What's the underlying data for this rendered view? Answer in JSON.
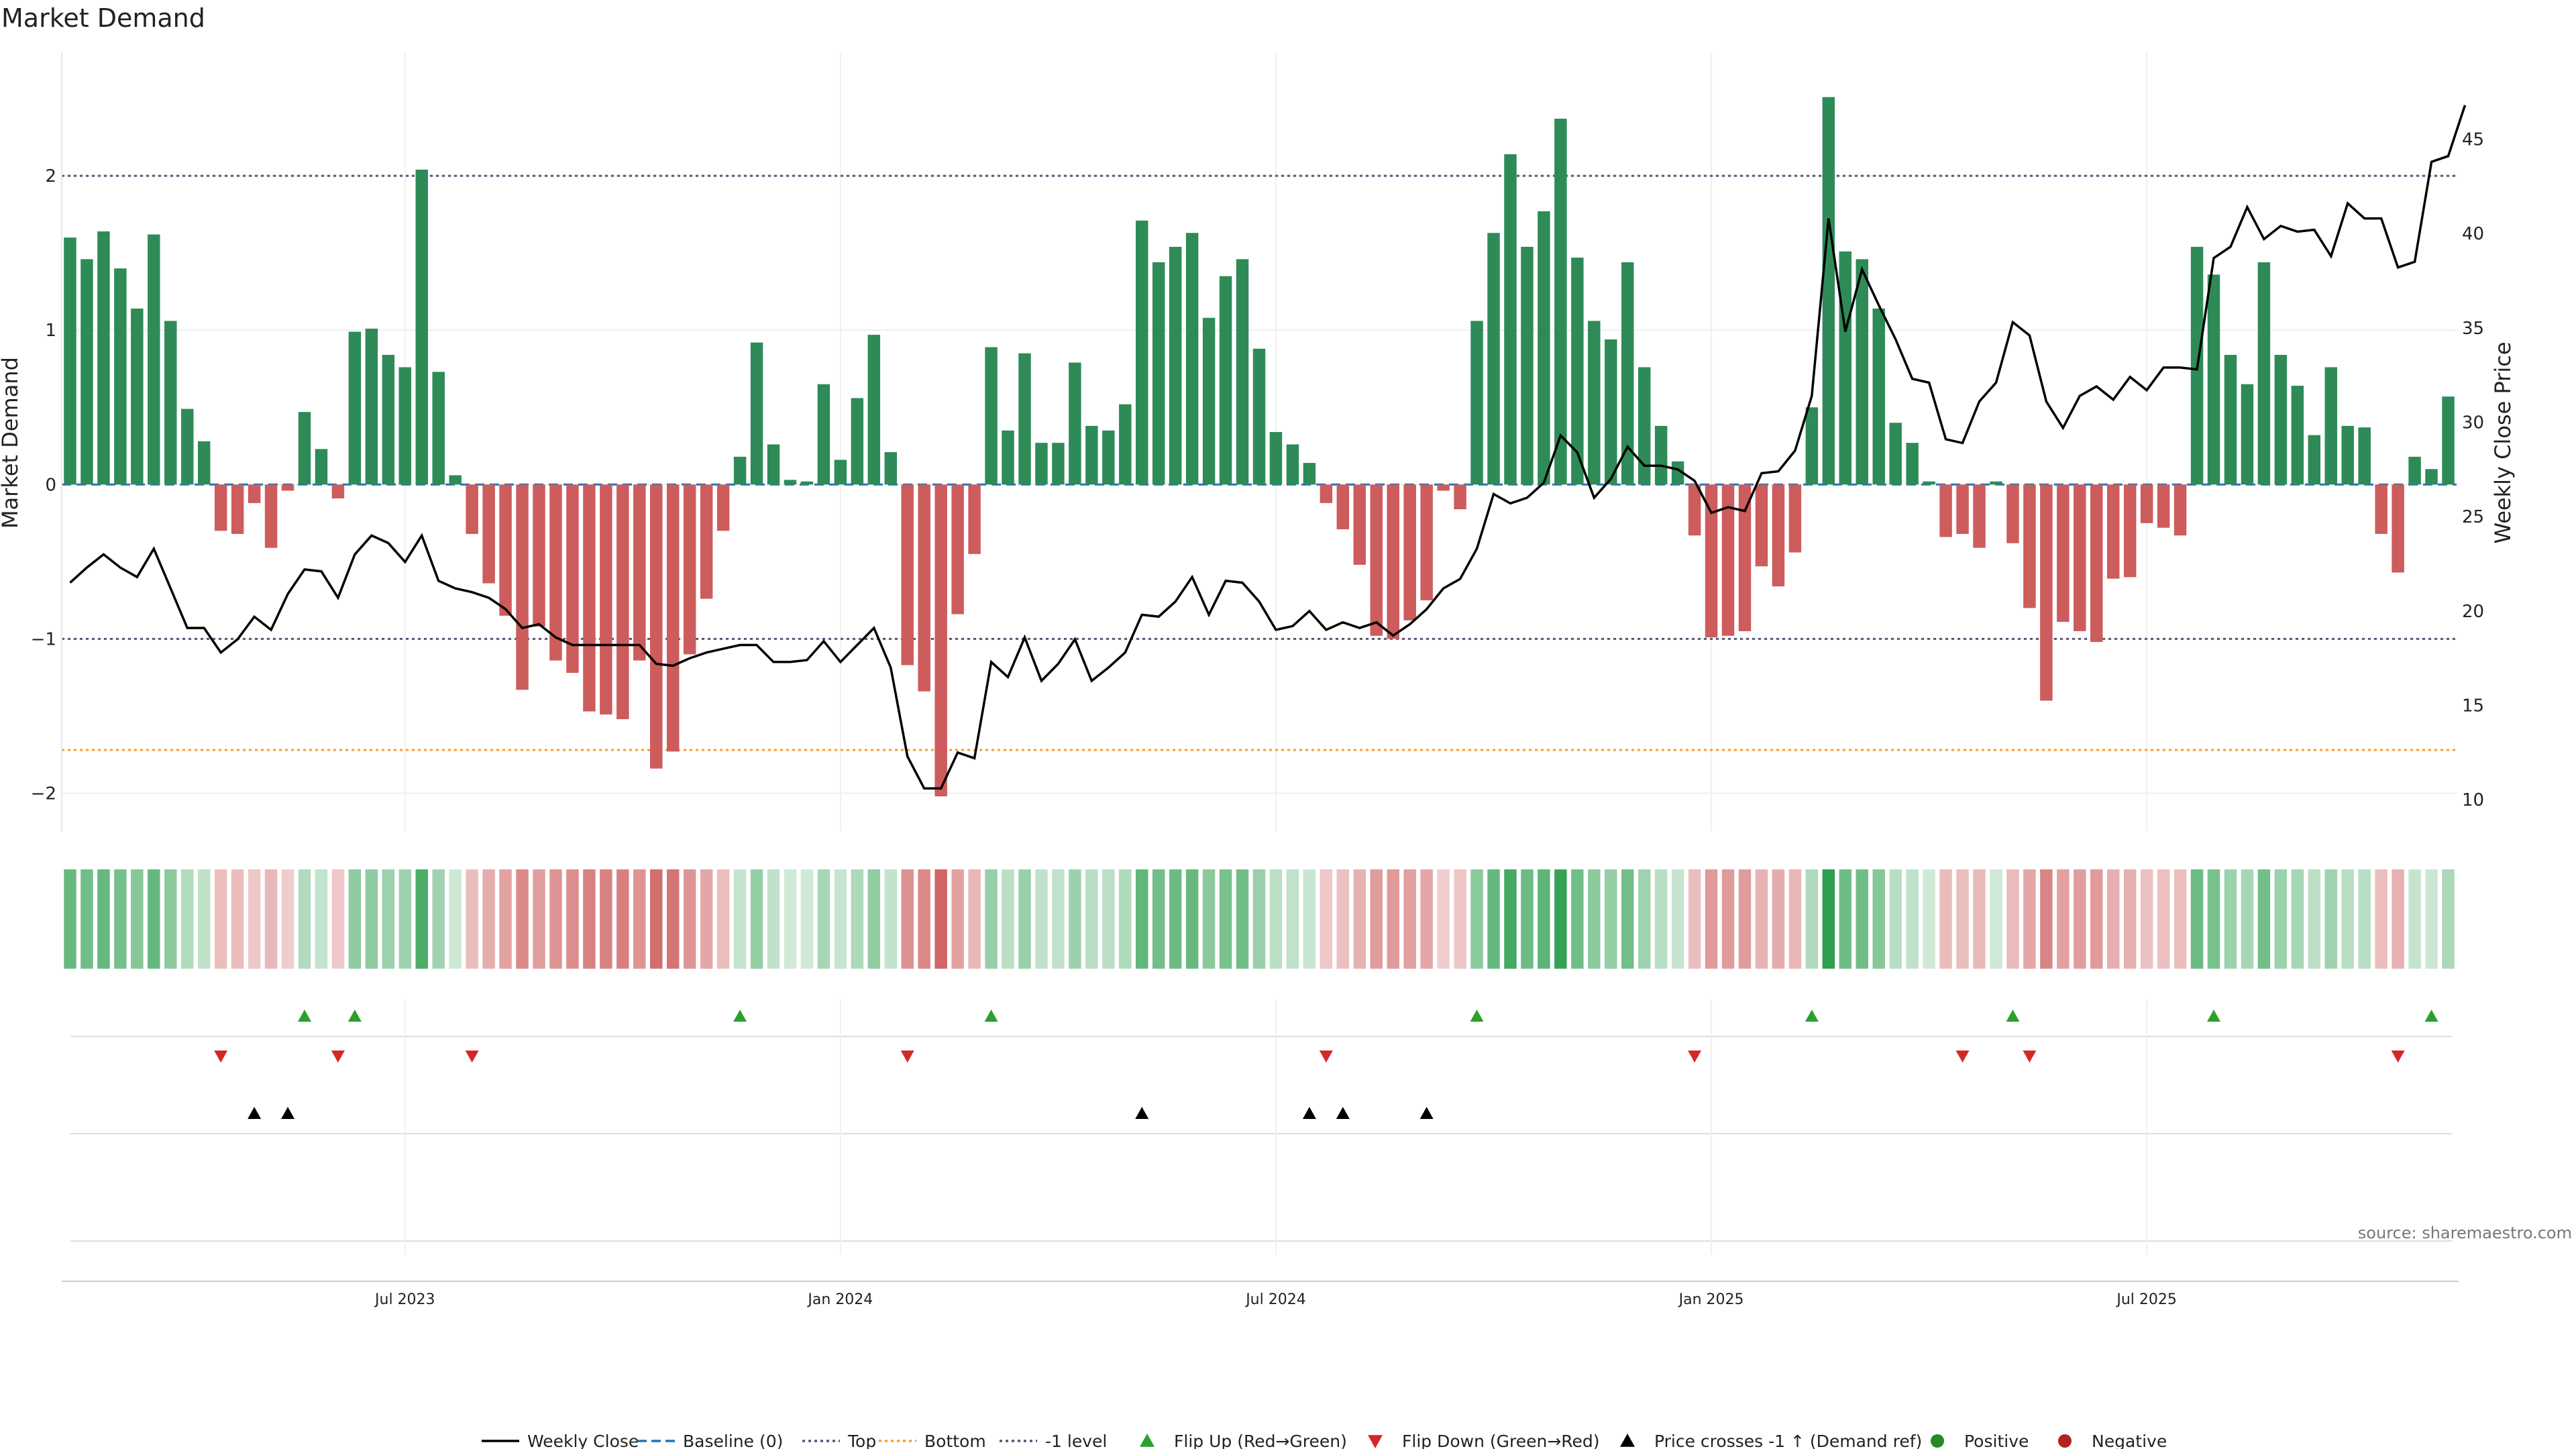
{
  "chart_data": {
    "type": "bar",
    "title": "Market Demand",
    "ylabel": "Market Demand",
    "y2label": "Weekly Close Price",
    "ylim": [
      -2.25,
      2.8
    ],
    "y2lim": [
      8.3,
      49.6
    ],
    "yticks": [
      -2,
      -1,
      0,
      1,
      2
    ],
    "yticklabels": [
      "−2",
      "−1",
      "0",
      "1",
      "2"
    ],
    "y2ticks": [
      10,
      15,
      20,
      25,
      30,
      35,
      40,
      45
    ],
    "y2ticklabels": [
      "10",
      "15",
      "20",
      "25",
      "30",
      "35",
      "40",
      "45"
    ],
    "reference_lines": {
      "top": 2.0,
      "bottom": -1.72,
      "minus_one": -1.0,
      "baseline": 0
    },
    "xticks": [
      {
        "index": 20,
        "label": "Jul 2023"
      },
      {
        "index": 46,
        "label": "Jan 2024"
      },
      {
        "index": 72,
        "label": "Jul 2024"
      },
      {
        "index": 98,
        "label": "Jan 2025"
      },
      {
        "index": 124,
        "label": "Jul 2025"
      }
    ],
    "series": [
      {
        "name": "Market Demand",
        "values": [
          1.6,
          1.46,
          1.64,
          1.4,
          1.14,
          1.62,
          1.06,
          0.49,
          0.28,
          -0.3,
          -0.32,
          -0.12,
          -0.41,
          -0.04,
          0.47,
          0.23,
          -0.09,
          0.99,
          1.01,
          0.84,
          0.76,
          2.04,
          0.73,
          0.06,
          -0.32,
          -0.64,
          -0.85,
          -1.33,
          -0.92,
          -1.14,
          -1.22,
          -1.47,
          -1.49,
          -1.52,
          -1.14,
          -1.84,
          -1.73,
          -1.1,
          -0.74,
          -0.3,
          0.18,
          0.92,
          0.26,
          0.03,
          0.02,
          0.65,
          0.16,
          0.56,
          0.97,
          0.21,
          -1.17,
          -1.34,
          -2.02,
          -0.84,
          -0.45,
          0.89,
          0.35,
          0.85,
          0.27,
          0.27,
          0.79,
          0.38,
          0.35,
          0.52,
          1.71,
          1.44,
          1.54,
          1.63,
          1.08,
          1.35,
          1.46,
          0.88,
          0.34,
          0.26,
          0.14,
          -0.12,
          -0.29,
          -0.52,
          -0.98,
          -1.0,
          -0.88,
          -0.75,
          -0.04,
          -0.16,
          1.06,
          1.63,
          2.14,
          1.54,
          1.77,
          2.37,
          1.47,
          1.06,
          0.94,
          1.44,
          0.76,
          0.38,
          0.15,
          -0.33,
          -0.99,
          -0.98,
          -0.95,
          -0.53,
          -0.66,
          -0.44,
          0.5,
          2.51,
          1.51,
          1.46,
          1.14,
          0.4,
          0.27,
          0.02,
          -0.34,
          -0.32,
          -0.41,
          0.02,
          -0.38,
          -0.8,
          -1.4,
          -0.89,
          -0.95,
          -1.02,
          -0.61,
          -0.6,
          -0.25,
          -0.28,
          -0.33,
          1.54,
          1.36,
          0.84,
          0.65,
          1.44,
          0.84,
          0.64,
          0.32,
          0.76,
          0.38,
          0.37,
          -0.32,
          -0.57,
          0.18,
          0.1,
          0.57
        ]
      },
      {
        "name": "Weekly Close",
        "values": [
          21.5,
          22.3,
          23.0,
          22.3,
          21.8,
          23.3,
          21.2,
          19.1,
          19.1,
          17.8,
          18.5,
          19.7,
          19.0,
          20.9,
          22.2,
          22.1,
          20.7,
          23.0,
          24.0,
          23.6,
          22.6,
          24.0,
          21.6,
          21.2,
          21.0,
          20.7,
          20.1,
          19.1,
          19.3,
          18.6,
          18.2,
          18.2,
          18.2,
          18.2,
          18.2,
          17.2,
          17.1,
          17.5,
          17.8,
          18.0,
          18.2,
          18.2,
          17.3,
          17.3,
          17.4,
          18.4,
          17.3,
          18.2,
          19.1,
          17.0,
          12.3,
          10.6,
          10.6,
          12.5,
          12.2,
          17.3,
          16.5,
          18.6,
          16.3,
          17.2,
          18.5,
          16.3,
          17.0,
          17.8,
          19.8,
          19.7,
          20.5,
          21.8,
          19.8,
          21.6,
          21.5,
          20.5,
          19.0,
          19.2,
          20.0,
          19.0,
          19.4,
          19.1,
          19.4,
          18.7,
          19.3,
          20.1,
          21.2,
          21.7,
          23.3,
          26.2,
          25.7,
          26.0,
          26.8,
          29.3,
          28.4,
          26.0,
          27.0,
          28.7,
          27.7,
          27.7,
          27.5,
          26.9,
          25.2,
          25.5,
          25.3,
          27.3,
          27.4,
          28.5,
          31.4,
          40.8,
          34.8,
          38.1,
          36.2,
          34.4,
          32.3,
          32.1,
          29.1,
          28.9,
          31.1,
          32.1,
          35.3,
          34.6,
          31.1,
          29.7,
          31.4,
          31.9,
          31.2,
          32.4,
          31.7,
          32.9,
          32.9,
          32.8,
          38.7,
          39.3,
          41.4,
          39.7,
          40.4,
          40.1,
          40.2,
          38.8,
          41.6,
          40.8,
          40.8,
          38.2,
          38.5,
          43.8,
          44.1,
          46.8
        ]
      }
    ],
    "signal_rows": {
      "flip_up": [
        14,
        17,
        40,
        55,
        84,
        104,
        116,
        128,
        141
      ],
      "flip_down": [
        9,
        16,
        24,
        50,
        75,
        97,
        113,
        117,
        139
      ],
      "price_crosses_minus_one_up": [
        11,
        13,
        64,
        74,
        76,
        81
      ]
    },
    "legend": [
      {
        "label": "Weekly Close",
        "kind": "line",
        "color": "#000000"
      },
      {
        "label": "Baseline (0)",
        "kind": "dashed",
        "color": "#1f77b4"
      },
      {
        "label": "Top",
        "kind": "dotted",
        "color": "#555577"
      },
      {
        "label": "Bottom",
        "kind": "dotted",
        "color": "#ff9922"
      },
      {
        "label": "-1 level",
        "kind": "dotted",
        "color": "#555577"
      },
      {
        "label": "Flip Up (Red→Green)",
        "kind": "triangle-up",
        "color": "#2ca02c"
      },
      {
        "label": "Flip Down (Green→Red)",
        "kind": "triangle-down",
        "color": "#d62728"
      },
      {
        "label": "Price crosses -1 ↑ (Demand ref)",
        "kind": "triangle-up",
        "color": "#000000"
      },
      {
        "label": "Positive",
        "kind": "dot",
        "color": "#228b22"
      },
      {
        "label": "Negative",
        "kind": "dot",
        "color": "#b22222"
      }
    ],
    "source": "source: sharemaestro.com",
    "colors": {
      "positive": "#2e8b57",
      "negative": "#cd5c5c",
      "line": "#000000",
      "top_line": "#555577",
      "bottom_line": "#ff9922",
      "baseline": "#1f77b4"
    }
  }
}
